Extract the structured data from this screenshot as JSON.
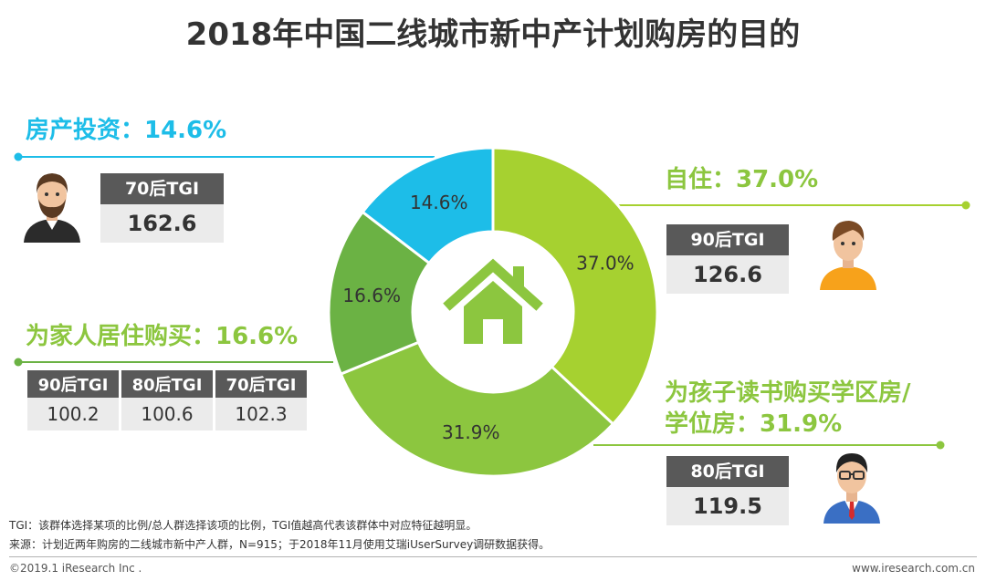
{
  "title": "2018年中国二线城市新中产计划购房的目的",
  "chart_data": {
    "type": "pie",
    "donut": true,
    "slices": [
      {
        "label": "自住",
        "value": 37.0,
        "color": "#a6d130"
      },
      {
        "label": "为孩子读书购买学区房/学位房",
        "value": 31.9,
        "color": "#8cc63f"
      },
      {
        "label": "为家人居住购买",
        "value": 16.6,
        "color": "#6bb244"
      },
      {
        "label": "房产投资",
        "value": 14.6,
        "color": "#1dbde8"
      }
    ],
    "slice_labels": [
      "37.0%",
      "31.9%",
      "16.6%",
      "14.6%"
    ]
  },
  "callouts": {
    "investment": {
      "label": "房产投资：14.6%",
      "tgi_header": "70后TGI",
      "tgi_value": "162.6"
    },
    "self_use": {
      "label": "自住：37.0%",
      "tgi_header": "90后TGI",
      "tgi_value": "126.6"
    },
    "family": {
      "label": "为家人居住购买：16.6%",
      "tgi": [
        {
          "header": "90后TGI",
          "value": "100.2"
        },
        {
          "header": "80后TGI",
          "value": "100.6"
        },
        {
          "header": "70后TGI",
          "value": "102.3"
        }
      ]
    },
    "school": {
      "label_line1": "为孩子读书购买学区房/",
      "label_line2": "学位房：31.9%",
      "tgi_header": "80后TGI",
      "tgi_value": "119.5"
    }
  },
  "notes": {
    "tgi": "TGI：该群体选择某项的比例/总人群选择该项的比例，TGI值越高代表该群体中对应特征越明显。",
    "source": "来源：计划近两年购房的二线城市新中产人群，N=915；于2018年11月使用艾瑞iUserSurvey调研数据获得。"
  },
  "footer": {
    "copyright": "©2019.1 iResearch Inc .",
    "website": "www.iresearch.com.cn"
  },
  "icons": {
    "center": "house-icon",
    "investment": "bearded-man-avatar-icon",
    "self_use": "young-man-avatar-icon",
    "school": "man-with-glasses-avatar-icon"
  }
}
